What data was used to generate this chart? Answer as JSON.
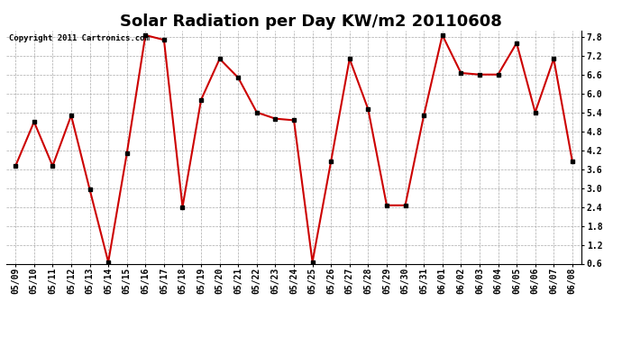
{
  "title": "Solar Radiation per Day KW/m2 20110608",
  "copyright_text": "Copyright 2011 Cartronics.com",
  "dates": [
    "05/09",
    "05/10",
    "05/11",
    "05/12",
    "05/13",
    "05/14",
    "05/15",
    "05/16",
    "05/17",
    "05/18",
    "05/19",
    "05/20",
    "05/21",
    "05/22",
    "05/23",
    "05/24",
    "05/25",
    "05/26",
    "05/27",
    "05/28",
    "05/29",
    "05/30",
    "05/31",
    "06/01",
    "06/02",
    "06/03",
    "06/04",
    "06/05",
    "06/06",
    "06/07",
    "06/08"
  ],
  "values": [
    3.7,
    5.1,
    3.7,
    5.3,
    2.95,
    0.65,
    4.1,
    7.85,
    7.7,
    2.4,
    5.8,
    7.1,
    6.5,
    5.4,
    5.2,
    5.15,
    0.65,
    3.85,
    7.1,
    5.5,
    2.45,
    2.45,
    5.3,
    7.85,
    6.65,
    6.6,
    6.6,
    7.6,
    5.4,
    7.1,
    3.85
  ],
  "line_color": "#cc0000",
  "marker": "s",
  "marker_size": 2.5,
  "marker_color": "#000000",
  "ylim": [
    0.6,
    8.0
  ],
  "yticks": [
    0.6,
    1.2,
    1.8,
    2.4,
    3.0,
    3.6,
    4.2,
    4.8,
    5.4,
    6.0,
    6.6,
    7.2,
    7.8
  ],
  "bg_color": "#ffffff",
  "grid_color": "#aaaaaa",
  "title_fontsize": 13,
  "tick_fontsize": 7,
  "copyright_fontsize": 6.5
}
